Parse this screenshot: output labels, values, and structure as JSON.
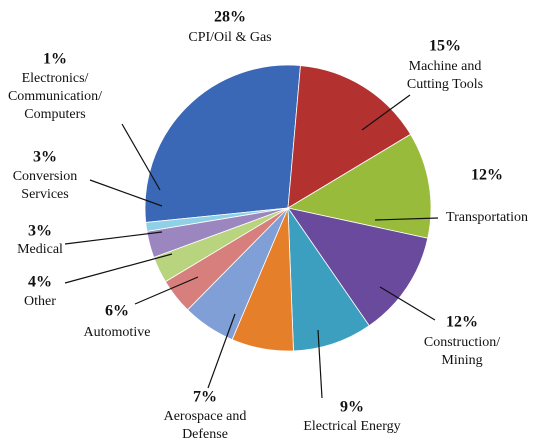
{
  "chart_data": {
    "type": "pie",
    "categories": [
      "CPI/Oil & Gas",
      "Machine and\nCutting Tools",
      "Transportation",
      "Construction/\nMining",
      "Electrical Energy",
      "Aerospace and\nDefense",
      "Automotive",
      "Other",
      "Medical",
      "Conversion\nServices",
      "Electronics/\nCommunication/\nComputers"
    ],
    "values": [
      28,
      15,
      12,
      12,
      9,
      7,
      6,
      4,
      3,
      3,
      1
    ],
    "value_labels": [
      "28%",
      "15%",
      "12%",
      "12%",
      "9%",
      "7%",
      "6%",
      "4%",
      "3%",
      "3%",
      "1%"
    ],
    "colors": [
      "#3b68b6",
      "#b3312f",
      "#98bb3c",
      "#6a4a9c",
      "#3d9fc0",
      "#e67f2a",
      "#7f9fd6",
      "#d77f7c",
      "#b9d47f",
      "#9b86c0",
      "#8fd0e6"
    ]
  }
}
